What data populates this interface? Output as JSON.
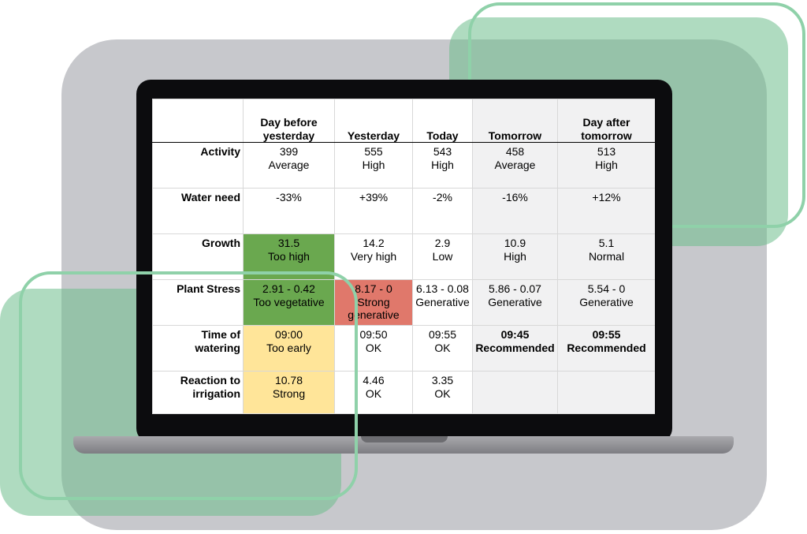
{
  "table": {
    "headers": [
      "",
      "Day before yesterday",
      "Yesterday",
      "Today",
      "Tomorrow",
      "Day after tomorrow"
    ],
    "rows": [
      {
        "label": "Activity",
        "cells": [
          {
            "value": "399",
            "status": "Average"
          },
          {
            "value": "555",
            "status": "High"
          },
          {
            "value": "543",
            "status": "High"
          },
          {
            "value": "458",
            "status": "Average"
          },
          {
            "value": "513",
            "status": "High"
          }
        ]
      },
      {
        "label": "Water need",
        "cells": [
          {
            "value": "-33%"
          },
          {
            "value": "+39%"
          },
          {
            "value": "-2%"
          },
          {
            "value": "-16%"
          },
          {
            "value": "+12%"
          }
        ]
      },
      {
        "label": "Growth",
        "cells": [
          {
            "value": "31.5",
            "status": "Too high",
            "color": "#6aa84f"
          },
          {
            "value": "14.2",
            "status": "Very high"
          },
          {
            "value": "2.9",
            "status": "Low"
          },
          {
            "value": "10.9",
            "status": "High"
          },
          {
            "value": "5.1",
            "status": "Normal"
          }
        ]
      },
      {
        "label": "Plant Stress",
        "cells": [
          {
            "value": "2.91 - 0.42",
            "status": "Too vegetative",
            "color": "#6aa84f"
          },
          {
            "value": "8.17 - 0",
            "status": "Strong generative",
            "color": "#e0786b"
          },
          {
            "value": "6.13 - 0.08",
            "status": "Generative"
          },
          {
            "value": "5.86 - 0.07",
            "status": "Generative"
          },
          {
            "value": "5.54 - 0",
            "status": "Generative"
          }
        ]
      },
      {
        "label": "Time of watering",
        "cells": [
          {
            "value": "09:00",
            "status": "Too early",
            "color": "#ffe599"
          },
          {
            "value": "09:50",
            "status": "OK"
          },
          {
            "value": "09:55",
            "status": "OK"
          },
          {
            "value": "09:45",
            "status": "Recommended"
          },
          {
            "value": "09:55",
            "status": "Recommended"
          }
        ]
      },
      {
        "label": "Reaction to irrigation",
        "cells": [
          {
            "value": "10.78",
            "status": "Strong",
            "color": "#ffe599"
          },
          {
            "value": "4.46",
            "status": "OK"
          },
          {
            "value": "3.35",
            "status": "OK"
          },
          {
            "value": ""
          },
          {
            "value": ""
          }
        ]
      }
    ]
  }
}
